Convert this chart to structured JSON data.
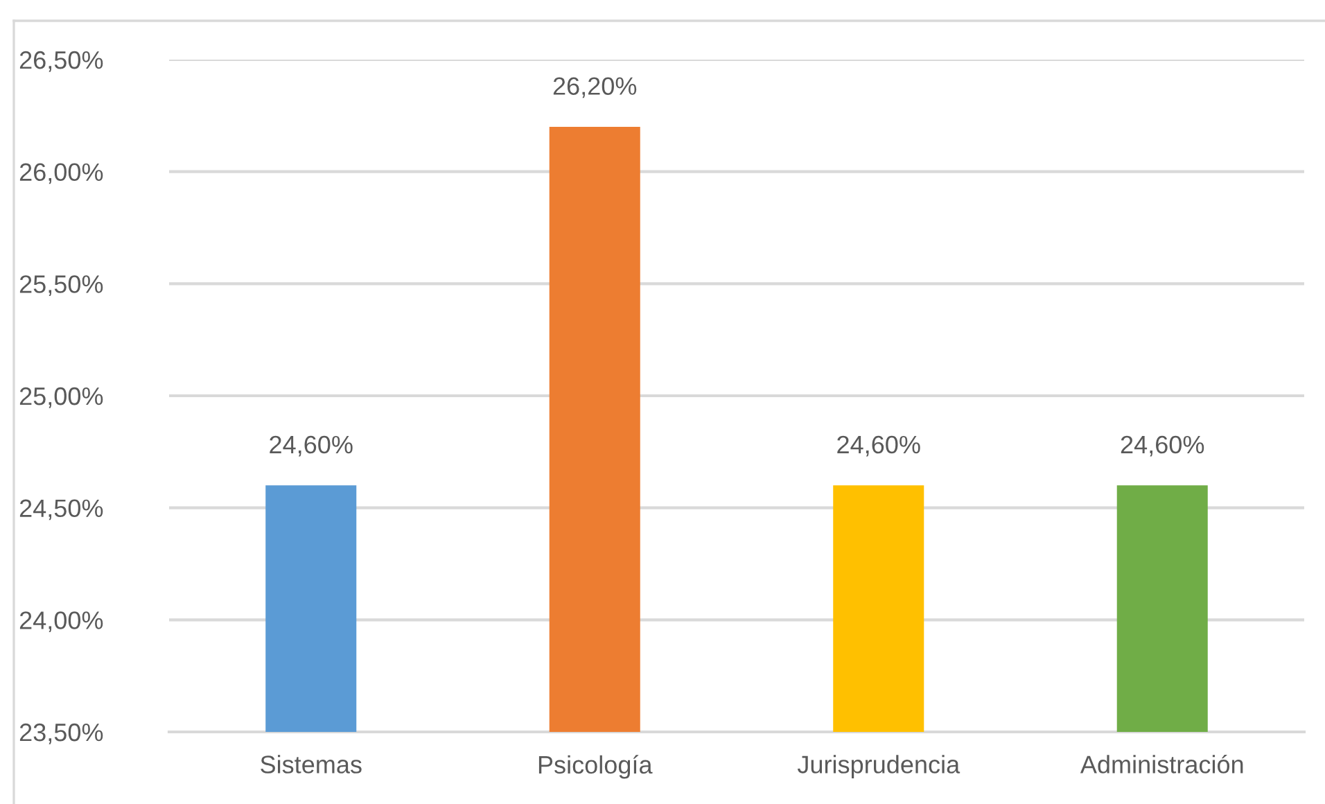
{
  "chart_data": {
    "type": "bar",
    "categories": [
      "Sistemas",
      "Psicología",
      "Jurisprudencia",
      "Administración"
    ],
    "values": [
      24.6,
      26.2,
      24.6,
      24.6
    ],
    "colors": [
      "#5b9bd5",
      "#ed7d31",
      "#ffc000",
      "#70ad47"
    ],
    "value_labels": [
      "24,60%",
      "26,20%",
      "24,60%",
      "24,60%"
    ],
    "ylim": [
      23.5,
      26.5
    ],
    "yticks": [
      {
        "value": 23.5,
        "label": "23,50%"
      },
      {
        "value": 24.0,
        "label": "24,00%"
      },
      {
        "value": 24.5,
        "label": "24,50%"
      },
      {
        "value": 25.0,
        "label": "25,00%"
      },
      {
        "value": 25.5,
        "label": "25,50%"
      },
      {
        "value": 26.0,
        "label": "26,00%"
      },
      {
        "value": 26.5,
        "label": "26,50%"
      }
    ],
    "grid": "y"
  }
}
